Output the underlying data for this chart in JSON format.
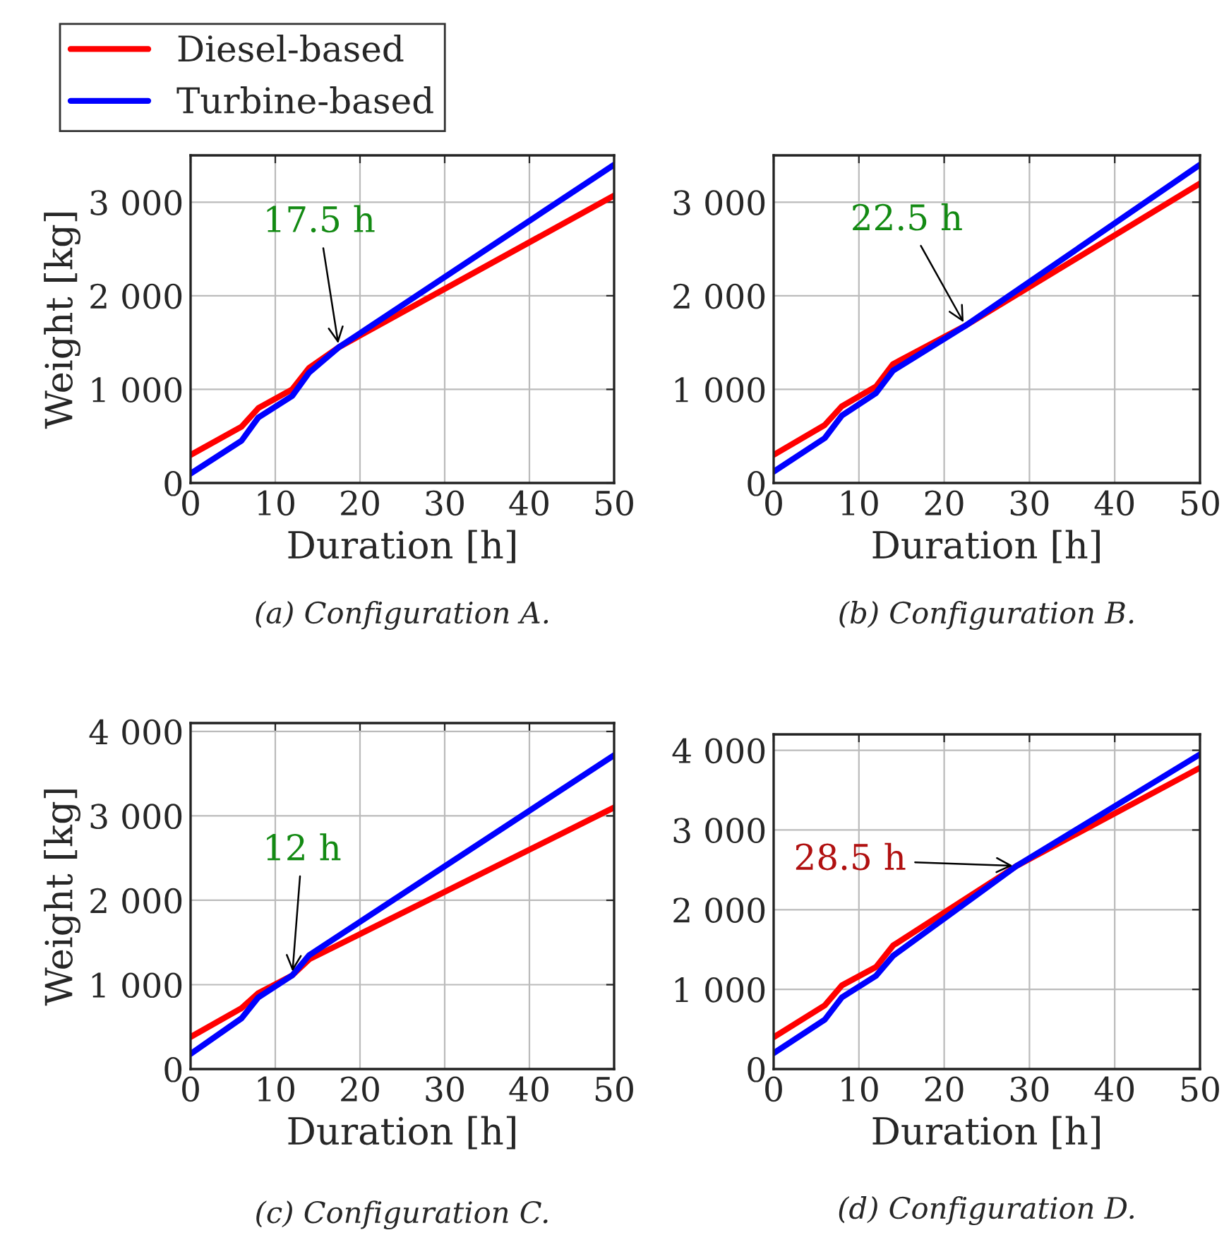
{
  "chart_data": [
    {
      "type": "line",
      "title": "(a) Configuration A.",
      "xlabel": "Duration [h]",
      "ylabel": "Weight [kg]",
      "legend": "top left",
      "grid": true,
      "xlim": [
        0,
        50
      ],
      "xticks": [
        0,
        10,
        20,
        30,
        40,
        50
      ],
      "ylim": [
        0,
        3500
      ],
      "yticks": [
        0,
        {
          "value": 1000,
          "label": "1 000"
        },
        {
          "value": 2000,
          "label": "2 000"
        },
        {
          "value": 3000,
          "label": "3 000"
        }
      ],
      "annotations": [
        {
          "text": "17.5 h",
          "x": 17.5,
          "y": 1450
        }
      ],
      "series": [
        {
          "name": "Diesel-based",
          "color": "#ff0000",
          "x": [
            0,
            6,
            8,
            12,
            14,
            17.5,
            50
          ],
          "values": [
            300,
            600,
            800,
            1000,
            1230,
            1450,
            3070
          ]
        },
        {
          "name": "Turbine-based",
          "color": "#0000ff",
          "x": [
            0,
            6,
            8,
            12,
            14,
            17.5,
            50
          ],
          "values": [
            100,
            450,
            700,
            930,
            1180,
            1450,
            3400
          ]
        }
      ]
    },
    {
      "type": "line",
      "title": "(b) Configuration B.",
      "xlabel": "Duration [h]",
      "grid": true,
      "xlim": [
        0,
        50
      ],
      "xticks": [
        0,
        10,
        20,
        30,
        40,
        50
      ],
      "ylim": [
        0,
        3500
      ],
      "yticks": [
        0,
        {
          "value": 1000,
          "label": "1 000"
        },
        {
          "value": 2000,
          "label": "2 000"
        },
        {
          "value": 3000,
          "label": "3 000"
        }
      ],
      "annotations": [
        {
          "text": "22.5 h",
          "x": 22.5,
          "y": 1680
        }
      ],
      "series": [
        {
          "color": "#ff0000",
          "x": [
            0,
            6,
            8,
            12,
            14,
            22.5,
            50
          ],
          "values": [
            300,
            620,
            820,
            1030,
            1270,
            1680,
            3200
          ]
        },
        {
          "color": "#0000ff",
          "x": [
            0,
            6,
            8,
            12,
            14,
            22.5,
            50
          ],
          "values": [
            120,
            480,
            720,
            960,
            1200,
            1680,
            3400
          ]
        }
      ]
    },
    {
      "type": "line",
      "title": "(c) Configuration C.",
      "xlabel": "Duration [h]",
      "ylabel": "Weight [kg]",
      "grid": true,
      "xlim": [
        0,
        50
      ],
      "xticks": [
        0,
        10,
        20,
        30,
        40,
        50
      ],
      "ylim": [
        0,
        4100
      ],
      "yticks": [
        0,
        {
          "value": 1000,
          "label": "1 000"
        },
        {
          "value": 2000,
          "label": "2 000"
        },
        {
          "value": 3000,
          "label": "3 000"
        },
        {
          "value": 4000,
          "label": "4 000"
        }
      ],
      "annotations": [
        {
          "text": "12 h",
          "x": 12,
          "y": 1110
        }
      ],
      "series": [
        {
          "color": "#ff0000",
          "x": [
            0,
            6,
            8,
            12,
            14,
            50
          ],
          "values": [
            380,
            720,
            900,
            1110,
            1300,
            3100
          ]
        },
        {
          "color": "#0000ff",
          "x": [
            0,
            6,
            8,
            12,
            14,
            50
          ],
          "values": [
            180,
            600,
            850,
            1110,
            1350,
            3720
          ]
        }
      ]
    },
    {
      "type": "line",
      "title": "(d) Configuration D.",
      "xlabel": "Duration [h]",
      "grid": true,
      "xlim": [
        0,
        50
      ],
      "xticks": [
        0,
        10,
        20,
        30,
        40,
        50
      ],
      "ylim": [
        0,
        4200
      ],
      "yticks": [
        0,
        {
          "value": 1000,
          "label": "1 000"
        },
        {
          "value": 2000,
          "label": "2 000"
        },
        {
          "value": 3000,
          "label": "3 000"
        },
        {
          "value": 4000,
          "label": "4 000"
        }
      ],
      "annotations": [
        {
          "text": "28.5 h",
          "x": 28.5,
          "y": 2550
        }
      ],
      "series": [
        {
          "color": "#ff0000",
          "x": [
            0,
            6,
            8,
            12,
            14,
            28.5,
            50
          ],
          "values": [
            400,
            800,
            1050,
            1280,
            1550,
            2550,
            3780
          ]
        },
        {
          "color": "#0000ff",
          "x": [
            0,
            6,
            8,
            12,
            14,
            28.5,
            50
          ],
          "values": [
            200,
            620,
            900,
            1170,
            1420,
            2550,
            3950
          ]
        }
      ]
    }
  ]
}
